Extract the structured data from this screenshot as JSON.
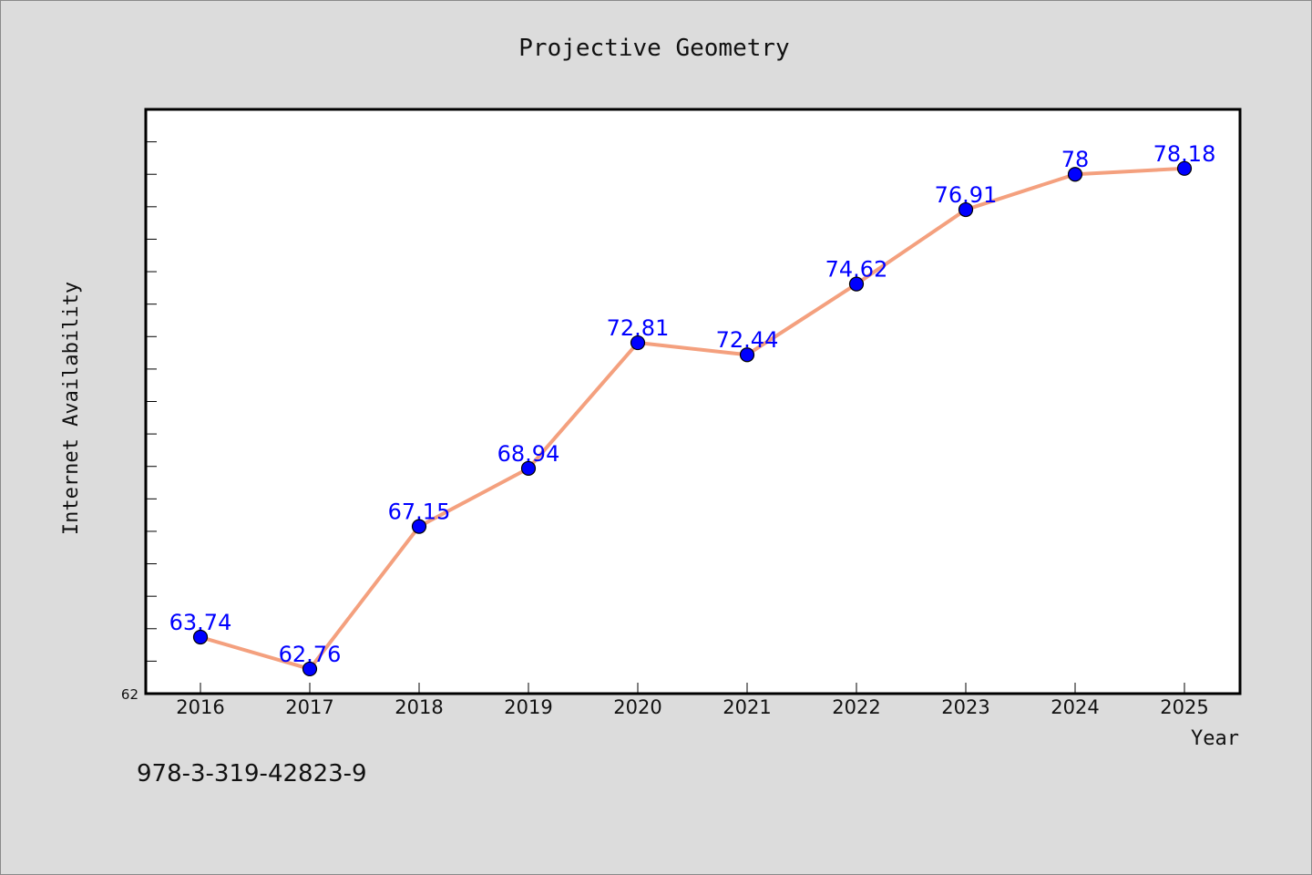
{
  "chart_data": {
    "type": "line",
    "title": "Projective Geometry",
    "xlabel": "Year",
    "ylabel": "Internet Availability",
    "x": [
      "2016",
      "2017",
      "2018",
      "2019",
      "2020",
      "2021",
      "2022",
      "2023",
      "2024",
      "2025"
    ],
    "series": [
      {
        "values": [
          63.74,
          62.76,
          67.15,
          68.94,
          72.81,
          72.44,
          74.62,
          76.91,
          78,
          78.18
        ],
        "labels": [
          "63.74",
          "62.76",
          "67.15",
          "68.94",
          "72.81",
          "72.44",
          "74.62",
          "76.91",
          "78",
          "78.18"
        ],
        "line_color": "#f4a07e",
        "marker_color": "#0000ff"
      }
    ],
    "ylim": [
      62,
      80
    ],
    "y_tick_labels": [
      "62"
    ],
    "grid": false,
    "legend": "none"
  },
  "footer": {
    "code": "978-3-319-42823-9"
  }
}
